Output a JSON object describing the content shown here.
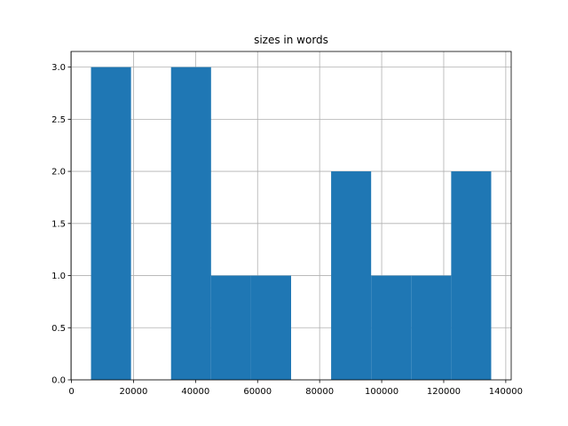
{
  "chart_data": {
    "type": "histogram",
    "title": "sizes in words",
    "bins": [
      6300,
      19200,
      32100,
      45000,
      57900,
      70800,
      83700,
      96600,
      109500,
      122400,
      135300
    ],
    "values": [
      3,
      0,
      3,
      1,
      1,
      0,
      2,
      1,
      1,
      2
    ],
    "color": "#1f77b4",
    "xlim": [
      -150,
      141750
    ],
    "xticks": [
      0,
      20000,
      40000,
      60000,
      80000,
      100000,
      120000,
      140000
    ],
    "ylim": [
      0,
      3.15
    ],
    "yticks": [
      {
        "value": 0,
        "label": "0.0"
      },
      {
        "value": 0.5,
        "label": "0.5"
      },
      {
        "value": 1,
        "label": "1.0"
      },
      {
        "value": 1.5,
        "label": "1.5"
      },
      {
        "value": 2,
        "label": "2.0"
      },
      {
        "value": 2.5,
        "label": "2.5"
      },
      {
        "value": 3,
        "label": "3.0"
      }
    ],
    "grid": true
  }
}
